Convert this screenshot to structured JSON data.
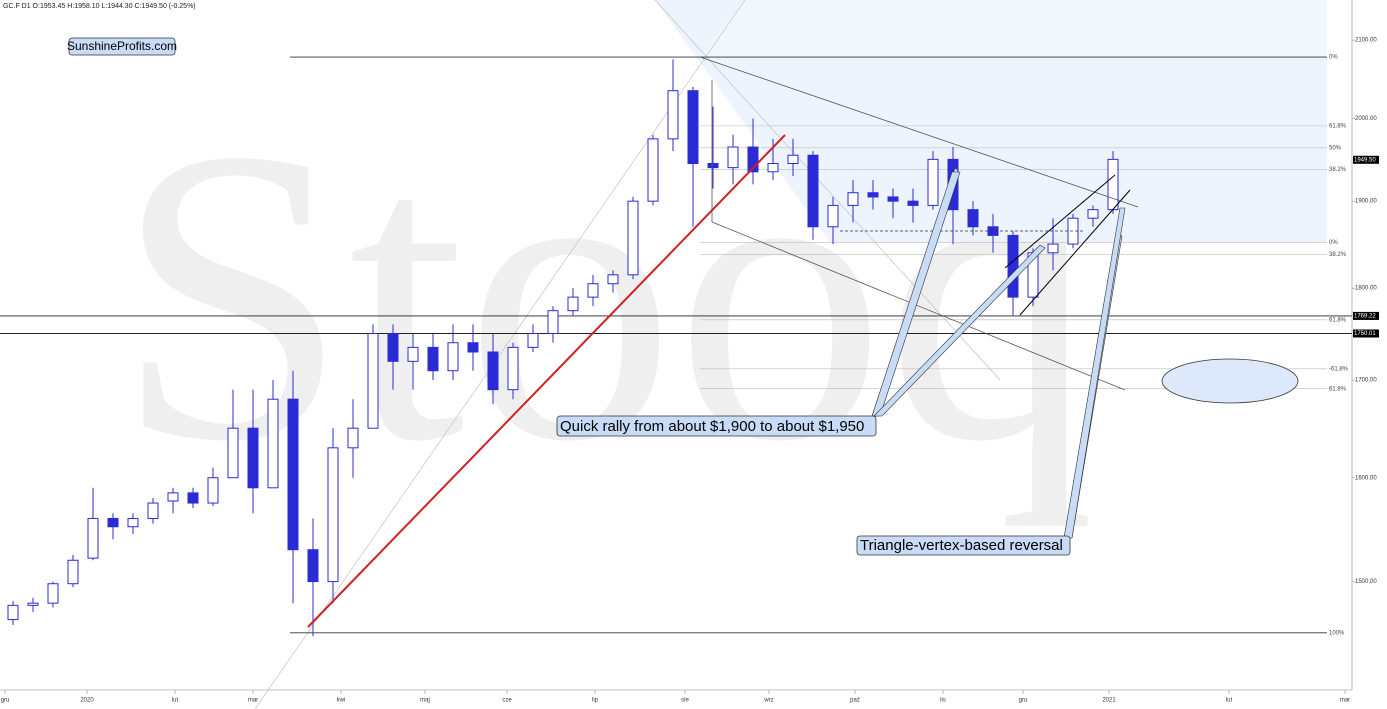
{
  "chart_data": {
    "type": "candlestick",
    "header": "GC.F  D1  O:1953.45  H:1958.10  L:1944.30  C:1949.50  (-0.25%)",
    "site_label": "SunshineProfits.com",
    "watermark": "Stooq",
    "annotations": [
      "Quick rally from about $1,900 to about $1,950",
      "Triangle-vertex-based reversal"
    ],
    "log_scale": true,
    "color": "#2b2bd6",
    "xlim": [
      -1.25,
      336.75
    ],
    "ylim": [
      1404,
      2153
    ],
    "xticks": [
      {
        "value": 0,
        "label": "gru"
      },
      {
        "value": 20.5,
        "label": "2020"
      },
      {
        "value": 42.5,
        "label": "lut"
      },
      {
        "value": 62,
        "label": "mar"
      },
      {
        "value": 84,
        "label": "kwi"
      },
      {
        "value": 105,
        "label": "maj"
      },
      {
        "value": 125.5,
        "label": "cze"
      },
      {
        "value": 147.5,
        "label": "lip"
      },
      {
        "value": 170,
        "label": "sie"
      },
      {
        "value": 191,
        "label": "wrz"
      },
      {
        "value": 212.5,
        "label": "paź"
      },
      {
        "value": 234.5,
        "label": "lis"
      },
      {
        "value": 254.5,
        "label": "gru"
      },
      {
        "value": 276,
        "label": "2021"
      },
      {
        "value": 306,
        "label": "lut"
      },
      {
        "value": 335,
        "label": "mar"
      }
    ],
    "yticks": [
      {
        "value": 2100,
        "label": "2100.00"
      },
      {
        "value": 2000,
        "label": "2000.00"
      },
      {
        "value": 1900,
        "label": "1900.00"
      },
      {
        "value": 1800,
        "label": "1800.00"
      },
      {
        "value": 1700,
        "label": "1700.00"
      },
      {
        "value": 1600,
        "label": "1600.00"
      },
      {
        "value": 1500,
        "label": "1500.00"
      }
    ],
    "price_labels": [
      {
        "value": 1949.5,
        "label": "1949.50"
      },
      {
        "value": 1769.22,
        "label": "1769.22"
      },
      {
        "value": 1750.01,
        "label": "1750.01"
      }
    ],
    "fib_levels": [
      {
        "value": 2078,
        "label": "0%"
      },
      {
        "value": 1991,
        "label": "61.8%"
      },
      {
        "value": 1964,
        "label": "50%"
      },
      {
        "value": 1938,
        "label": "38.2%"
      },
      {
        "value": 1852,
        "label": "0%"
      },
      {
        "value": 1838,
        "label": "38.2%"
      },
      {
        "value": 1765,
        "label": "61.8%"
      },
      {
        "value": 1712,
        "label": "-61.8%"
      },
      {
        "value": 1691,
        "label": "61.8%"
      },
      {
        "value": 1453,
        "label": "100%"
      }
    ],
    "x": [
      2,
      7,
      12,
      17,
      22,
      27,
      32,
      37,
      42,
      47,
      52,
      57,
      62,
      67,
      72,
      77,
      82,
      87,
      92,
      97,
      102,
      107,
      112,
      117,
      122,
      127,
      132,
      137,
      142,
      147,
      152,
      157,
      162,
      167,
      172,
      177,
      182,
      187,
      192,
      197,
      202,
      207,
      212,
      217,
      222,
      227,
      232,
      237,
      242,
      247,
      252,
      257,
      262,
      267,
      272,
      277
    ],
    "open": [
      1465,
      1478,
      1480,
      1498,
      1522,
      1560,
      1552,
      1560,
      1577,
      1585,
      1575,
      1600,
      1650,
      1590,
      1680,
      1530,
      1500,
      1630,
      1650,
      1750,
      1720,
      1735,
      1710,
      1740,
      1730,
      1690,
      1735,
      1750,
      1775,
      1790,
      1805,
      1815,
      1900,
      1975,
      2035,
      1945,
      1940,
      1965,
      1935,
      1945,
      1955,
      1870,
      1895,
      1910,
      1905,
      1900,
      1895,
      1950,
      1890,
      1870,
      1860,
      1790,
      1840,
      1850,
      1880,
      1890
    ],
    "high": [
      1482,
      1485,
      1500,
      1525,
      1590,
      1565,
      1565,
      1580,
      1590,
      1590,
      1610,
      1690,
      1690,
      1700,
      1710,
      1560,
      1650,
      1680,
      1760,
      1760,
      1750,
      1750,
      1760,
      1760,
      1750,
      1740,
      1760,
      1780,
      1800,
      1815,
      1820,
      1905,
      1980,
      2075,
      2040,
      2015,
      1980,
      2000,
      1975,
      1975,
      1960,
      1905,
      1925,
      1925,
      1915,
      1915,
      1960,
      1965,
      1900,
      1885,
      1865,
      1845,
      1880,
      1885,
      1895,
      1960
    ],
    "low": [
      1460,
      1472,
      1476,
      1495,
      1520,
      1540,
      1545,
      1555,
      1565,
      1570,
      1572,
      1600,
      1565,
      1590,
      1480,
      1450,
      1480,
      1600,
      1650,
      1690,
      1690,
      1700,
      1700,
      1710,
      1675,
      1680,
      1730,
      1740,
      1770,
      1780,
      1795,
      1810,
      1895,
      1960,
      1870,
      1915,
      1920,
      1920,
      1925,
      1930,
      1855,
      1850,
      1875,
      1890,
      1880,
      1875,
      1890,
      1850,
      1860,
      1840,
      1770,
      1780,
      1820,
      1845,
      1870,
      1885
    ],
    "close": [
      1478,
      1480,
      1498,
      1520,
      1560,
      1552,
      1560,
      1575,
      1585,
      1575,
      1600,
      1650,
      1590,
      1680,
      1530,
      1500,
      1630,
      1650,
      1750,
      1720,
      1735,
      1710,
      1740,
      1730,
      1690,
      1735,
      1750,
      1775,
      1790,
      1805,
      1815,
      1900,
      1975,
      2035,
      1945,
      1940,
      1965,
      1935,
      1945,
      1955,
      1870,
      1895,
      1910,
      1905,
      1900,
      1895,
      1950,
      1890,
      1870,
      1860,
      1790,
      1840,
      1850,
      1880,
      1890,
      1950
    ]
  }
}
